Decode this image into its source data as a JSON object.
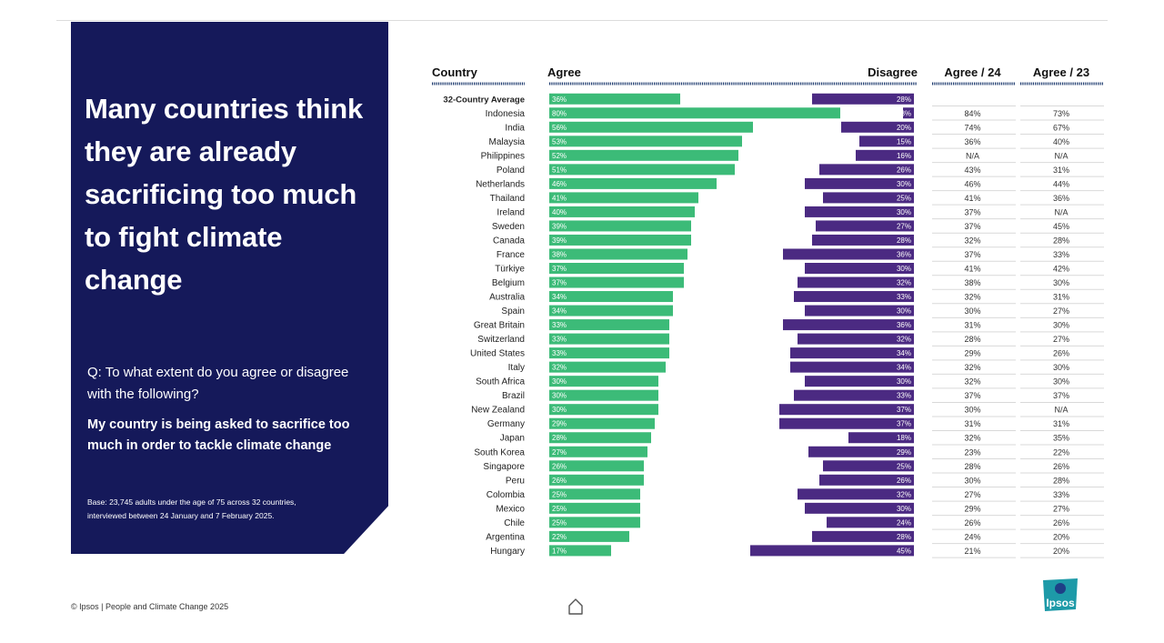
{
  "panel": {
    "headline": "Many countries think they are already sacrificing too much to fight climate change",
    "question": "Q: To what extent do you agree or disagree with the following?",
    "statement": "My country is being asked to sacrifice too much in order to tackle climate change",
    "base": "Base: 23,745 adults under the age of 75 across 32 countries, interviewed between 24 January and 7 February 2025."
  },
  "footer": {
    "text": "© Ipsos | People and Climate Change 2025"
  },
  "logo": {
    "text": "Ipsos"
  },
  "icons": {
    "home": "home-icon"
  },
  "colors": {
    "agree": "#3cbb78",
    "disagree": "#4b2a82",
    "panel": "#15195a",
    "dots": "#1d3a6e"
  },
  "chart_data": {
    "type": "bar",
    "columns": {
      "country": "Country",
      "agree": "Agree",
      "disagree": "Disagree",
      "agree24": "Agree / 24",
      "agree23": "Agree / 23"
    },
    "categories": [
      "32-Country Average",
      "Indonesia",
      "India",
      "Malaysia",
      "Philippines",
      "Poland",
      "Netherlands",
      "Thailand",
      "Ireland",
      "Sweden",
      "Canada",
      "France",
      "Türkiye",
      "Belgium",
      "Australia",
      "Spain",
      "Great Britain",
      "Switzerland",
      "United States",
      "Italy",
      "South Africa",
      "Brazil",
      "New Zealand",
      "Germany",
      "Japan",
      "South Korea",
      "Singapore",
      "Peru",
      "Colombia",
      "Mexico",
      "Chile",
      "Argentina",
      "Hungary"
    ],
    "series": [
      {
        "name": "Agree",
        "values": [
          36,
          80,
          56,
          53,
          52,
          51,
          46,
          41,
          40,
          39,
          39,
          38,
          37,
          37,
          34,
          34,
          33,
          33,
          33,
          32,
          30,
          30,
          30,
          29,
          28,
          27,
          26,
          26,
          25,
          25,
          25,
          22,
          17
        ]
      },
      {
        "name": "Disagree",
        "values": [
          28,
          3,
          20,
          15,
          16,
          26,
          30,
          25,
          30,
          27,
          28,
          36,
          30,
          32,
          33,
          30,
          36,
          32,
          34,
          34,
          30,
          33,
          37,
          37,
          18,
          29,
          25,
          26,
          32,
          30,
          24,
          28,
          45
        ]
      }
    ],
    "agree_24": [
      "",
      "84%",
      "74%",
      "36%",
      "N/A",
      "43%",
      "46%",
      "41%",
      "37%",
      "37%",
      "32%",
      "37%",
      "41%",
      "38%",
      "32%",
      "30%",
      "31%",
      "28%",
      "29%",
      "32%",
      "32%",
      "37%",
      "30%",
      "31%",
      "32%",
      "23%",
      "28%",
      "30%",
      "27%",
      "29%",
      "26%",
      "24%",
      "21%"
    ],
    "agree_23": [
      "",
      "73%",
      "67%",
      "40%",
      "N/A",
      "31%",
      "44%",
      "36%",
      "N/A",
      "45%",
      "28%",
      "33%",
      "42%",
      "30%",
      "31%",
      "27%",
      "30%",
      "27%",
      "26%",
      "30%",
      "30%",
      "37%",
      "N/A",
      "31%",
      "35%",
      "22%",
      "26%",
      "28%",
      "33%",
      "27%",
      "26%",
      "20%",
      "20%"
    ],
    "unit": "%",
    "xlim": [
      0,
      100
    ]
  }
}
